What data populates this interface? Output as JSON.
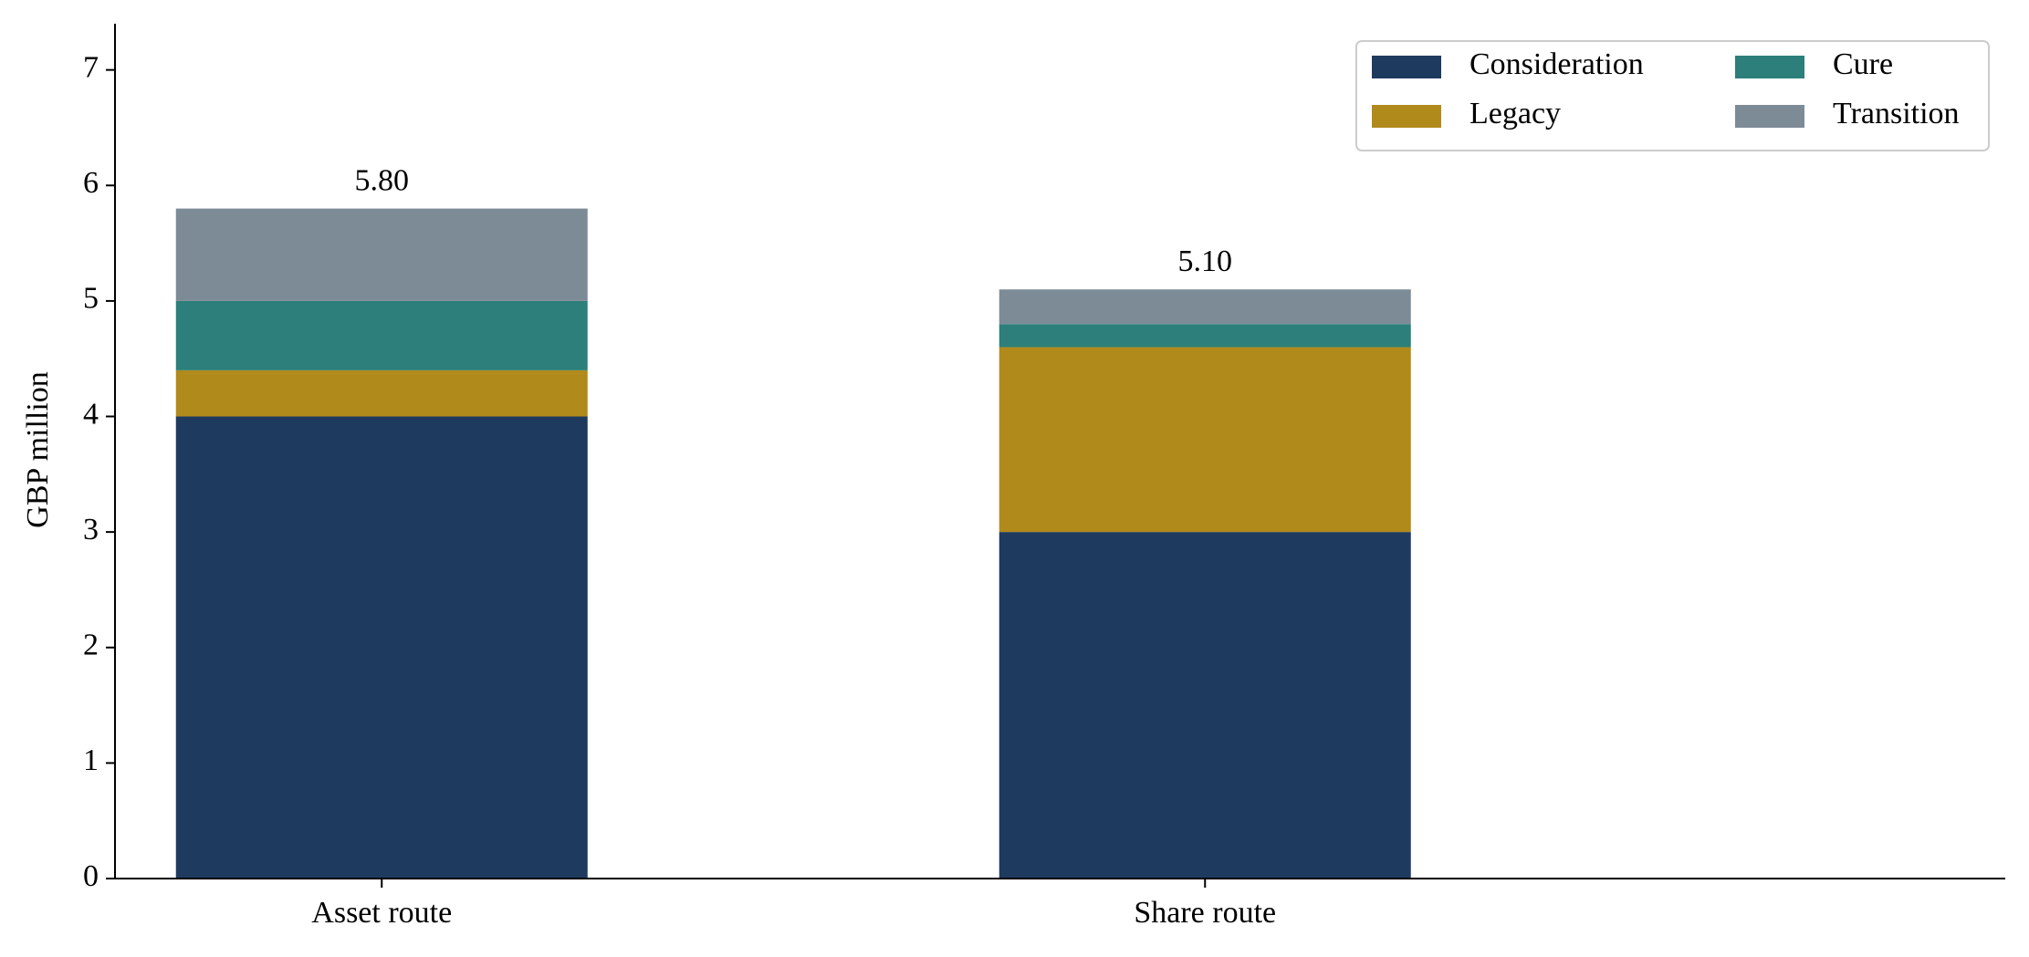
{
  "chart_data": {
    "type": "stacked_bar",
    "ylabel": "GBP million",
    "categories": [
      "Asset route",
      "Share route"
    ],
    "series": [
      {
        "name": "Consideration",
        "color": "#1f3a5f",
        "values": [
          4.0,
          3.0
        ]
      },
      {
        "name": "Legacy",
        "color": "#b08a1a",
        "values": [
          0.4,
          1.6
        ]
      },
      {
        "name": "Cure",
        "color": "#2c7f7a",
        "values": [
          0.6,
          0.2
        ]
      },
      {
        "name": "Transition",
        "color": "#7d8b97",
        "values": [
          0.8,
          0.3
        ]
      }
    ],
    "totals": [
      5.8,
      5.1
    ],
    "total_labels": [
      "5.80",
      "5.10"
    ],
    "ylim": [
      0,
      7.4
    ],
    "yticks": [
      0,
      1,
      2,
      3,
      4,
      5,
      6,
      7
    ],
    "grid": false,
    "legend": "upper right",
    "legend_columns": 2
  }
}
